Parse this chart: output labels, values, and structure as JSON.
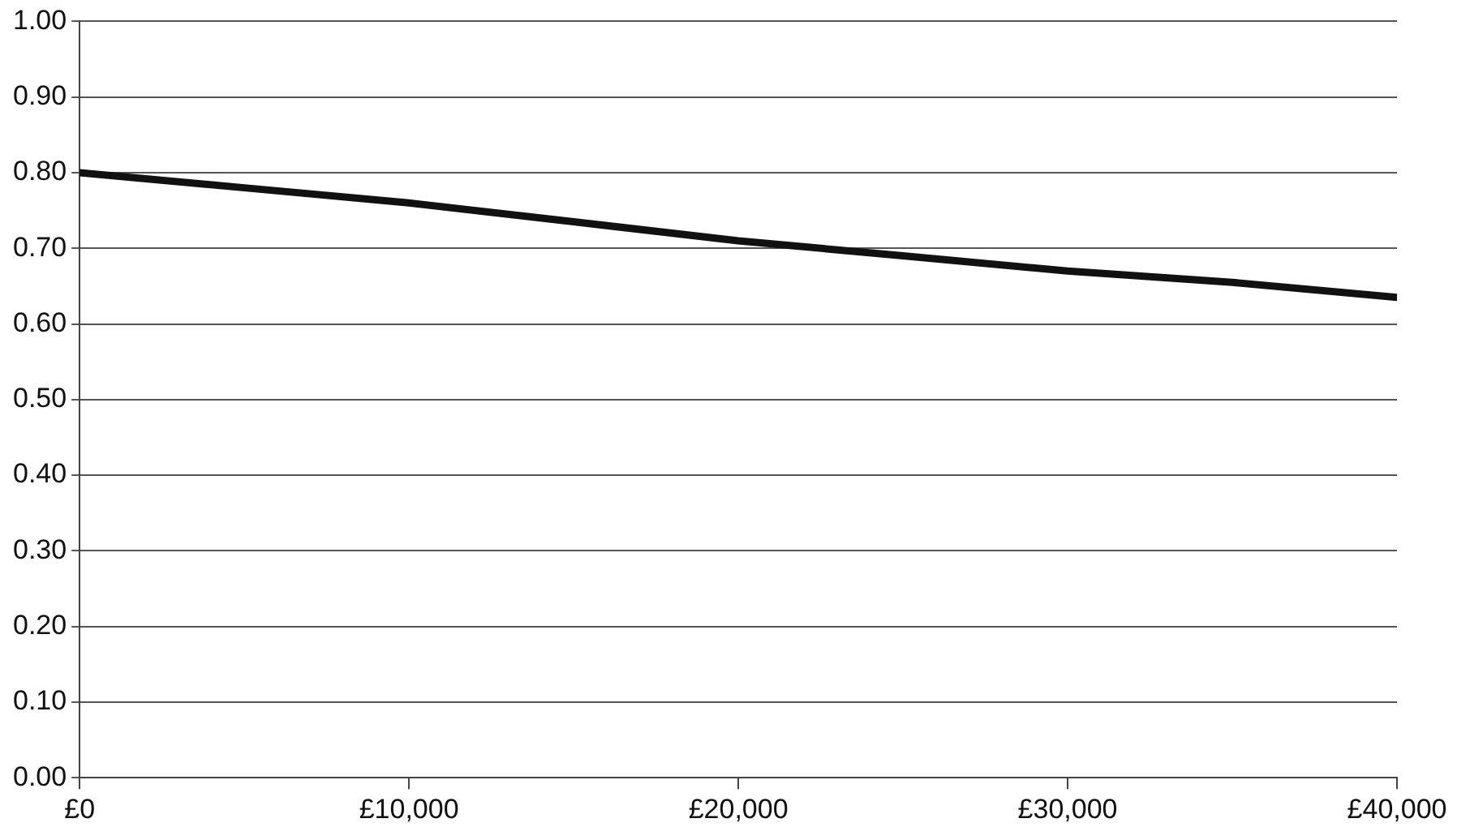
{
  "chart_data": {
    "type": "line",
    "x": [
      0,
      5000,
      10000,
      15000,
      20000,
      25000,
      30000,
      35000,
      40000
    ],
    "series": [
      {
        "color": "#111111",
        "values": [
          0.8,
          0.78,
          0.76,
          0.735,
          0.71,
          0.69,
          0.67,
          0.655,
          0.635
        ]
      }
    ],
    "xlim": [
      0,
      40000
    ],
    "xticks": [
      {
        "value": 0,
        "label": "£0"
      },
      {
        "value": 10000,
        "label": "£10,000"
      },
      {
        "value": 20000,
        "label": "£20,000"
      },
      {
        "value": 30000,
        "label": "£30,000"
      },
      {
        "value": 40000,
        "label": "£40,000"
      }
    ],
    "ylim": [
      0,
      1
    ],
    "yticks": [
      {
        "value": 0,
        "label": "0.00"
      },
      {
        "value": 0.1,
        "label": "0.10"
      },
      {
        "value": 0.2,
        "label": "0.20"
      },
      {
        "value": 0.3,
        "label": "0.30"
      },
      {
        "value": 0.4,
        "label": "0.40"
      },
      {
        "value": 0.5,
        "label": "0.50"
      },
      {
        "value": 0.6,
        "label": "0.60"
      },
      {
        "value": 0.7,
        "label": "0.70"
      },
      {
        "value": 0.8,
        "label": "0.80"
      },
      {
        "value": 0.9,
        "label": "0.90"
      },
      {
        "value": 1,
        "label": "1.00"
      }
    ],
    "grid": "y",
    "legend": false,
    "marker": "none",
    "line_style": "solid"
  }
}
